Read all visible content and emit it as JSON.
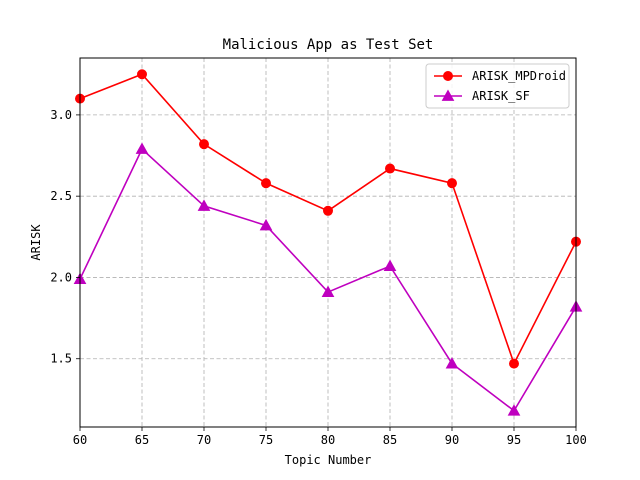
{
  "chart_data": {
    "type": "line",
    "title": "Malicious App as Test Set",
    "xlabel": "Topic Number",
    "ylabel": "ARISK",
    "x": [
      60,
      65,
      70,
      75,
      80,
      85,
      90,
      95,
      100
    ],
    "xlim": [
      60,
      100
    ],
    "ylim": [
      1.08,
      3.35
    ],
    "xticks": [
      60,
      65,
      70,
      75,
      80,
      85,
      90,
      95,
      100
    ],
    "yticks": [
      1.5,
      2.0,
      2.5,
      3.0
    ],
    "xtick_labels": [
      "60",
      "65",
      "70",
      "75",
      "80",
      "85",
      "90",
      "95",
      "100"
    ],
    "ytick_labels": [
      "1.5",
      "2.0",
      "2.5",
      "3.0"
    ],
    "grid": true,
    "legend_position": "top-right",
    "series": [
      {
        "name": "ARISK_MPDroid",
        "color": "#ff0000",
        "marker": "circle",
        "values": [
          3.1,
          3.25,
          2.82,
          2.58,
          2.41,
          2.67,
          2.58,
          1.47,
          2.22
        ]
      },
      {
        "name": "ARISK_SF",
        "color": "#bf00bf",
        "marker": "triangle",
        "values": [
          1.99,
          2.79,
          2.44,
          2.32,
          1.91,
          2.07,
          1.47,
          1.18,
          1.82
        ]
      }
    ]
  }
}
